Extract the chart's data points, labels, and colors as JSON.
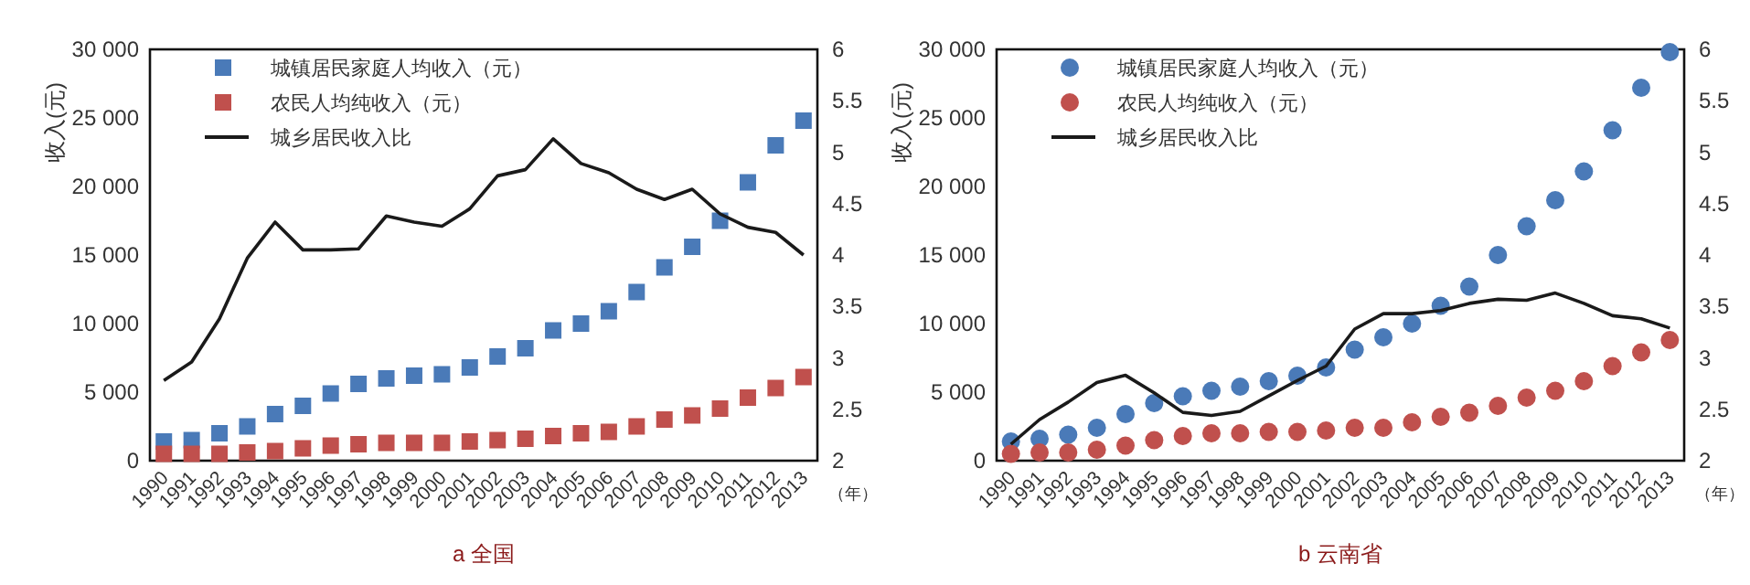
{
  "chart_data": [
    {
      "type": "scatter",
      "title": "a 全国",
      "ylabel": "收入(元)",
      "xlabel": "（年）",
      "legend": "top left",
      "categories": [
        "1990",
        "1991",
        "1992",
        "1993",
        "1994",
        "1995",
        "1996",
        "1997",
        "1998",
        "1999",
        "2000",
        "2001",
        "2002",
        "2003",
        "2004",
        "2005",
        "2006",
        "2007",
        "2008",
        "2009",
        "2010",
        "2011",
        "2012",
        "2013"
      ],
      "ylim": [
        0,
        30000
      ],
      "yticks": [
        0,
        {
          "value": 5000,
          "label": "5 000"
        },
        {
          "value": 10000,
          "label": "10 000"
        },
        {
          "value": 15000,
          "label": "15 000"
        },
        {
          "value": 20000,
          "label": "20 000"
        },
        {
          "value": 25000,
          "label": "25 000"
        },
        {
          "value": 30000,
          "label": "30 000"
        }
      ],
      "y2lim": [
        2,
        6
      ],
      "y2ticks": [
        2,
        2.5,
        3,
        3.5,
        4,
        4.5,
        5,
        5.5,
        6
      ],
      "series": [
        {
          "name": "城镇居民家庭人均收入（元）",
          "type": "scatter",
          "marker": "square",
          "color": "#4a7ab8",
          "values": [
            1400,
            1500,
            2000,
            2500,
            3400,
            4000,
            4900,
            5600,
            6000,
            6200,
            6300,
            6800,
            7600,
            8200,
            9500,
            10000,
            10900,
            12300,
            14100,
            15600,
            17500,
            20300,
            23000,
            24800
          ]
        },
        {
          "name": "农民人均纯收入（元）",
          "type": "scatter",
          "marker": "square",
          "color": "#c0504d",
          "values": [
            500,
            500,
            500,
            600,
            700,
            900,
            1100,
            1200,
            1300,
            1300,
            1300,
            1400,
            1500,
            1600,
            1800,
            2000,
            2100,
            2500,
            3000,
            3300,
            3800,
            4600,
            5300,
            6100
          ]
        },
        {
          "name": "城乡居民收入比",
          "type": "line",
          "axis": "y2",
          "marker": "none",
          "color": "#1a1a1a",
          "values": [
            2.78,
            2.96,
            3.38,
            3.97,
            4.32,
            4.05,
            4.05,
            4.06,
            4.38,
            4.32,
            4.28,
            4.45,
            4.77,
            4.83,
            5.13,
            4.89,
            4.8,
            4.64,
            4.54,
            4.64,
            4.4,
            4.27,
            4.22,
            4.0
          ]
        }
      ]
    },
    {
      "type": "scatter",
      "title": "b 云南省",
      "ylabel": "收入(元)",
      "xlabel": "（年）",
      "legend": "top left",
      "categories": [
        "1990",
        "1991",
        "1992",
        "1993",
        "1994",
        "1995",
        "1996",
        "1997",
        "1998",
        "1999",
        "2000",
        "2001",
        "2002",
        "2003",
        "2004",
        "2005",
        "2006",
        "2007",
        "2008",
        "2009",
        "2010",
        "2011",
        "2012",
        "2013"
      ],
      "ylim": [
        0,
        30000
      ],
      "yticks": [
        0,
        {
          "value": 5000,
          "label": "5 000"
        },
        {
          "value": 10000,
          "label": "10 000"
        },
        {
          "value": 15000,
          "label": "15 000"
        },
        {
          "value": 20000,
          "label": "20 000"
        },
        {
          "value": 25000,
          "label": "25 000"
        },
        {
          "value": 30000,
          "label": "30 000"
        }
      ],
      "y2lim": [
        2,
        6
      ],
      "y2ticks": [
        2,
        2.5,
        3,
        3.5,
        4,
        4.5,
        5,
        5.5,
        6
      ],
      "series": [
        {
          "name": "城镇居民家庭人均收入（元）",
          "type": "scatter",
          "marker": "circle",
          "color": "#4a7ab8",
          "values": [
            1400,
            1600,
            1900,
            2400,
            3400,
            4200,
            4700,
            5100,
            5400,
            5800,
            6200,
            6800,
            8100,
            9000,
            10000,
            11300,
            12700,
            15000,
            17100,
            19000,
            21100,
            24100,
            27200,
            29800
          ]
        },
        {
          "name": "农民人均纯收入（元）",
          "type": "scatter",
          "marker": "circle",
          "color": "#c0504d",
          "values": [
            500,
            600,
            600,
            800,
            1100,
            1500,
            1800,
            2000,
            2000,
            2100,
            2100,
            2200,
            2400,
            2400,
            2800,
            3200,
            3500,
            4000,
            4600,
            5100,
            5800,
            6900,
            7900,
            8800
          ]
        },
        {
          "name": "城乡居民收入比",
          "type": "line",
          "axis": "y2",
          "marker": "none",
          "color": "#1a1a1a",
          "values": [
            2.16,
            2.4,
            2.57,
            2.76,
            2.83,
            2.66,
            2.47,
            2.44,
            2.48,
            2.63,
            2.78,
            2.92,
            3.28,
            3.43,
            3.43,
            3.46,
            3.53,
            3.57,
            3.56,
            3.63,
            3.53,
            3.41,
            3.38,
            3.29
          ]
        }
      ]
    }
  ]
}
